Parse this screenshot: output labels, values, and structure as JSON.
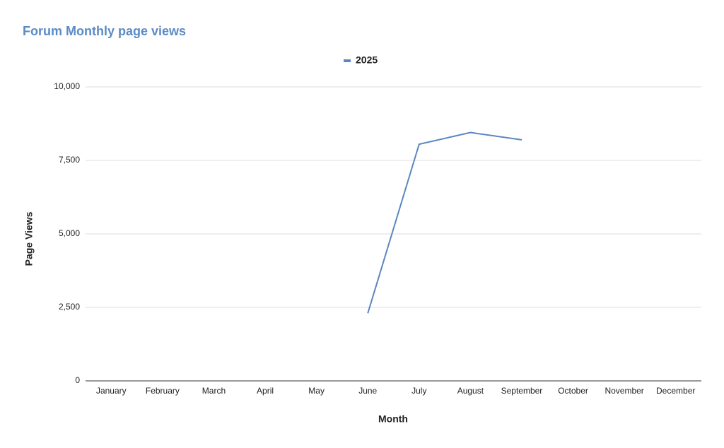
{
  "chart_data": {
    "type": "line",
    "title": "Forum Monthly page views",
    "x_label": "Month",
    "y_label": "Page Views",
    "categories": [
      "January",
      "February",
      "March",
      "April",
      "May",
      "June",
      "July",
      "August",
      "September",
      "October",
      "November",
      "December"
    ],
    "series": [
      {
        "name": "2025",
        "color": "#5b87c0",
        "values": [
          null,
          null,
          null,
          null,
          null,
          2300,
          8050,
          8450,
          8200,
          null,
          null,
          null
        ]
      }
    ],
    "ylim": [
      0,
      10000
    ],
    "yticks": [
      0,
      {
        "value": 2500,
        "label": "2,500"
      },
      {
        "value": 5000,
        "label": "5,000"
      },
      {
        "value": 7500,
        "label": "7,500"
      },
      {
        "value": 10000,
        "label": "10,000"
      }
    ],
    "grid": true,
    "legend": "top"
  }
}
